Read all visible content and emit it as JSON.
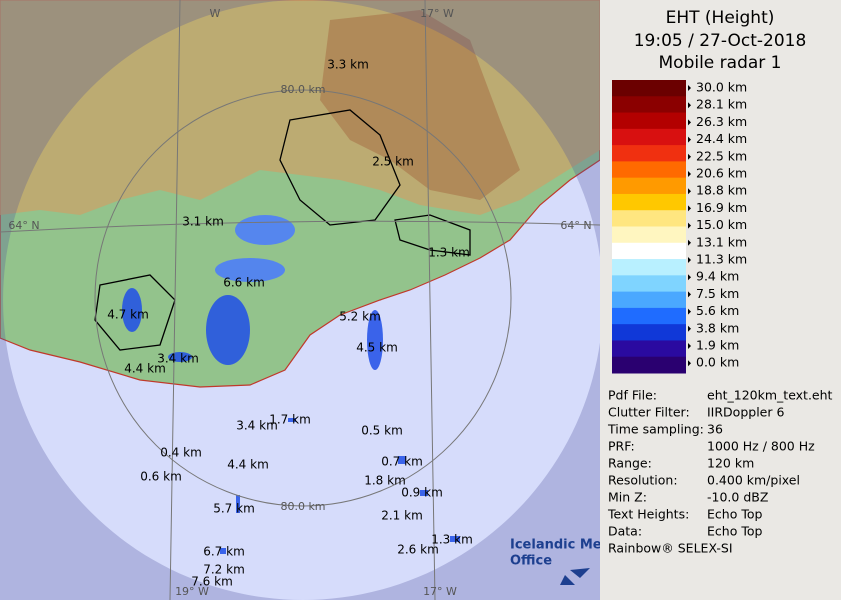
{
  "header": {
    "title": "EHT (Height)",
    "time": "19:05 / 27-Oct-2018",
    "radar": "Mobile radar 1"
  },
  "legend": {
    "labels": [
      "30.0 km",
      "28.1 km",
      "26.3 km",
      "24.4 km",
      "22.5 km",
      "20.6 km",
      "18.8 km",
      "16.9 km",
      "15.0 km",
      "13.1 km",
      "11.3 km",
      "9.4 km",
      "7.5 km",
      "5.6 km",
      "3.8 km",
      "1.9 km",
      "0.0 km"
    ]
  },
  "info": {
    "rows": [
      [
        "Pdf File:",
        "eht_120km_text.eht"
      ],
      [
        "Clutter Filter:",
        "IIRDoppler 6"
      ],
      [
        "Time sampling:",
        "36"
      ],
      [
        "PRF:",
        "1000 Hz / 800 Hz"
      ],
      [
        "Range:",
        "120 km"
      ],
      [
        "Resolution:",
        "0.400 km/pixel"
      ],
      [
        "Min Z:",
        "-10.0 dBZ"
      ],
      [
        "Text Heights:",
        "Echo Top"
      ],
      [
        "Data:",
        "Echo Top"
      ]
    ],
    "footer": "Rainbow® SELEX-SI"
  },
  "map": {
    "grid_labels": [
      "W",
      "17° W",
      "64° N",
      "64° N",
      "19° W",
      "17° W"
    ],
    "ring_labels": [
      "80.0 km",
      "80.0 km"
    ],
    "echo_labels": [
      "3.3 km",
      "2.5 km",
      "3.1 km",
      "1.3 km",
      "6.6 km",
      "4.7 km",
      "5.2 km",
      "4.5 km",
      "3.4 km",
      "4.4 km",
      "1.7 km",
      "3.4 km",
      "0.5 km",
      "0.4 km",
      "4.4 km",
      "0.7 km",
      "0.6 km",
      "1.8 km",
      "0.9 km",
      "5.7 km",
      "2.1 km",
      "1.3 km",
      "2.6 km",
      "6.7 km",
      "7.2 km",
      "7.6 km"
    ],
    "logo": [
      "Icelandic Met",
      "Office"
    ]
  }
}
